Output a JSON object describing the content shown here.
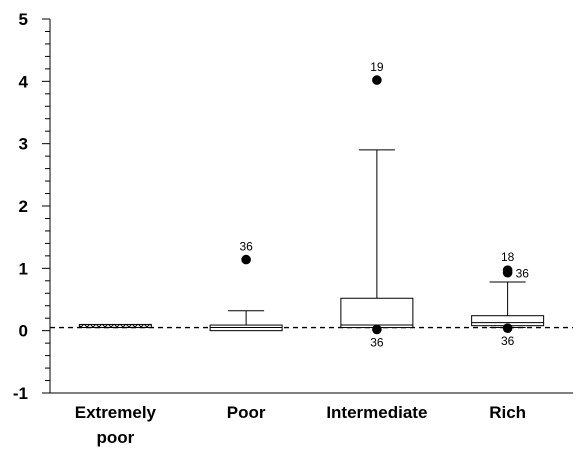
{
  "chart_data": {
    "type": "box",
    "ylim": [
      -1,
      5
    ],
    "yticks": [
      "-1",
      "0",
      "1",
      "2",
      "3",
      "4",
      "5"
    ],
    "reference_line": 0.05,
    "categories": [
      {
        "label_lines": [
          "Extremely",
          "poor"
        ],
        "whisker_low": 0.05,
        "q1": 0.05,
        "median": 0.05,
        "q3": 0.1,
        "whisker_high": 0.1,
        "outliers": [],
        "hatched": true
      },
      {
        "label_lines": [
          "Poor"
        ],
        "whisker_low": 0.0,
        "q1": 0.0,
        "median": 0.05,
        "q3": 0.09,
        "whisker_high": 0.32,
        "outliers": [
          {
            "y": 1.14,
            "label": "36",
            "label_pos": "above"
          }
        ],
        "hatched": false
      },
      {
        "label_lines": [
          "Intermediate"
        ],
        "whisker_low": 0.05,
        "q1": 0.05,
        "median": 0.09,
        "q3": 0.52,
        "whisker_high": 2.9,
        "outliers": [
          {
            "y": 4.02,
            "label": "19",
            "label_pos": "above"
          },
          {
            "y": 0.02,
            "label": "36",
            "label_pos": "below"
          }
        ],
        "hatched": false
      },
      {
        "label_lines": [
          "Rich"
        ],
        "whisker_low": 0.05,
        "q1": 0.08,
        "median": 0.13,
        "q3": 0.24,
        "whisker_high": 0.78,
        "outliers": [
          {
            "y": 0.97,
            "label": "18",
            "label_pos": "above"
          },
          {
            "y": 0.93,
            "label": "36",
            "label_pos": "right"
          },
          {
            "y": 0.04,
            "label": "36",
            "label_pos": "below"
          }
        ],
        "hatched": false
      }
    ]
  }
}
